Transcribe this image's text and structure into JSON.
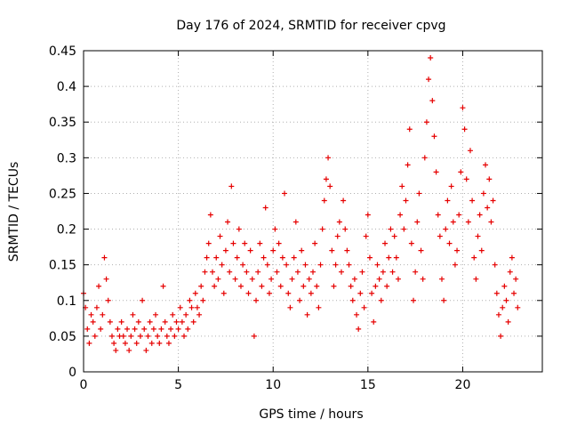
{
  "chart_data": {
    "type": "scatter",
    "title": "Day 176 of 2024, SRMTID for receiver cpvg",
    "xlabel": "GPS time / hours",
    "ylabel": "SRMTID / TECUs",
    "xlim": [
      0,
      24.2
    ],
    "ylim": [
      0,
      0.45
    ],
    "xticks": [
      0,
      5,
      10,
      15,
      20
    ],
    "xtick_labels": [
      "0",
      "5",
      "10",
      "15",
      "20"
    ],
    "yticks": [
      0,
      0.05,
      0.1,
      0.15,
      0.2,
      0.25,
      0.3,
      0.35,
      0.4,
      0.45
    ],
    "ytick_labels": [
      "0",
      "0.05",
      "0.1",
      "0.15",
      "0.2",
      "0.25",
      "0.3",
      "0.35",
      "0.4",
      "0.45"
    ],
    "grid": true,
    "marker": "+",
    "marker_color": "#e60000",
    "series": [
      {
        "name": "SRMTID",
        "points": [
          [
            0.0,
            0.11
          ],
          [
            0.1,
            0.09
          ],
          [
            0.2,
            0.06
          ],
          [
            0.3,
            0.04
          ],
          [
            0.4,
            0.08
          ],
          [
            0.5,
            0.07
          ],
          [
            0.6,
            0.05
          ],
          [
            0.7,
            0.09
          ],
          [
            0.8,
            0.12
          ],
          [
            0.9,
            0.06
          ],
          [
            1.0,
            0.08
          ],
          [
            1.1,
            0.16
          ],
          [
            1.2,
            0.13
          ],
          [
            1.3,
            0.1
          ],
          [
            1.4,
            0.07
          ],
          [
            1.5,
            0.05
          ],
          [
            1.6,
            0.04
          ],
          [
            1.7,
            0.03
          ],
          [
            1.8,
            0.06
          ],
          [
            1.9,
            0.05
          ],
          [
            2.0,
            0.07
          ],
          [
            2.1,
            0.05
          ],
          [
            2.2,
            0.04
          ],
          [
            2.3,
            0.06
          ],
          [
            2.4,
            0.03
          ],
          [
            2.5,
            0.05
          ],
          [
            2.6,
            0.08
          ],
          [
            2.7,
            0.06
          ],
          [
            2.8,
            0.04
          ],
          [
            2.9,
            0.07
          ],
          [
            3.0,
            0.05
          ],
          [
            3.1,
            0.1
          ],
          [
            3.2,
            0.06
          ],
          [
            3.3,
            0.03
          ],
          [
            3.4,
            0.05
          ],
          [
            3.5,
            0.07
          ],
          [
            3.6,
            0.04
          ],
          [
            3.7,
            0.06
          ],
          [
            3.8,
            0.08
          ],
          [
            3.9,
            0.05
          ],
          [
            4.0,
            0.04
          ],
          [
            4.1,
            0.06
          ],
          [
            4.2,
            0.12
          ],
          [
            4.3,
            0.07
          ],
          [
            4.4,
            0.05
          ],
          [
            4.5,
            0.04
          ],
          [
            4.6,
            0.06
          ],
          [
            4.7,
            0.08
          ],
          [
            4.8,
            0.05
          ],
          [
            4.9,
            0.07
          ],
          [
            5.0,
            0.06
          ],
          [
            5.1,
            0.09
          ],
          [
            5.2,
            0.07
          ],
          [
            5.3,
            0.05
          ],
          [
            5.4,
            0.08
          ],
          [
            5.5,
            0.06
          ],
          [
            5.6,
            0.1
          ],
          [
            5.7,
            0.09
          ],
          [
            5.8,
            0.07
          ],
          [
            5.9,
            0.11
          ],
          [
            6.0,
            0.09
          ],
          [
            6.1,
            0.08
          ],
          [
            6.2,
            0.12
          ],
          [
            6.3,
            0.1
          ],
          [
            6.4,
            0.14
          ],
          [
            6.5,
            0.16
          ],
          [
            6.6,
            0.18
          ],
          [
            6.7,
            0.22
          ],
          [
            6.8,
            0.14
          ],
          [
            6.9,
            0.12
          ],
          [
            7.0,
            0.16
          ],
          [
            7.1,
            0.13
          ],
          [
            7.2,
            0.19
          ],
          [
            7.3,
            0.15
          ],
          [
            7.4,
            0.11
          ],
          [
            7.5,
            0.17
          ],
          [
            7.6,
            0.21
          ],
          [
            7.7,
            0.14
          ],
          [
            7.8,
            0.26
          ],
          [
            7.9,
            0.18
          ],
          [
            8.0,
            0.13
          ],
          [
            8.1,
            0.16
          ],
          [
            8.2,
            0.2
          ],
          [
            8.3,
            0.12
          ],
          [
            8.4,
            0.15
          ],
          [
            8.5,
            0.18
          ],
          [
            8.6,
            0.14
          ],
          [
            8.7,
            0.11
          ],
          [
            8.8,
            0.17
          ],
          [
            8.9,
            0.13
          ],
          [
            9.0,
            0.05
          ],
          [
            9.1,
            0.1
          ],
          [
            9.2,
            0.14
          ],
          [
            9.3,
            0.18
          ],
          [
            9.4,
            0.12
          ],
          [
            9.5,
            0.16
          ],
          [
            9.6,
            0.23
          ],
          [
            9.7,
            0.15
          ],
          [
            9.8,
            0.11
          ],
          [
            9.9,
            0.13
          ],
          [
            10.0,
            0.17
          ],
          [
            10.1,
            0.2
          ],
          [
            10.2,
            0.14
          ],
          [
            10.3,
            0.18
          ],
          [
            10.4,
            0.12
          ],
          [
            10.5,
            0.16
          ],
          [
            10.6,
            0.25
          ],
          [
            10.7,
            0.15
          ],
          [
            10.8,
            0.11
          ],
          [
            10.9,
            0.09
          ],
          [
            11.0,
            0.13
          ],
          [
            11.1,
            0.16
          ],
          [
            11.2,
            0.21
          ],
          [
            11.3,
            0.14
          ],
          [
            11.4,
            0.1
          ],
          [
            11.5,
            0.17
          ],
          [
            11.6,
            0.12
          ],
          [
            11.7,
            0.15
          ],
          [
            11.8,
            0.08
          ],
          [
            11.9,
            0.13
          ],
          [
            12.0,
            0.11
          ],
          [
            12.1,
            0.14
          ],
          [
            12.2,
            0.18
          ],
          [
            12.3,
            0.12
          ],
          [
            12.4,
            0.09
          ],
          [
            12.5,
            0.15
          ],
          [
            12.6,
            0.2
          ],
          [
            12.7,
            0.24
          ],
          [
            12.8,
            0.27
          ],
          [
            12.9,
            0.3
          ],
          [
            13.0,
            0.26
          ],
          [
            13.1,
            0.17
          ],
          [
            13.2,
            0.12
          ],
          [
            13.3,
            0.15
          ],
          [
            13.4,
            0.19
          ],
          [
            13.5,
            0.21
          ],
          [
            13.6,
            0.14
          ],
          [
            13.7,
            0.24
          ],
          [
            13.8,
            0.2
          ],
          [
            13.9,
            0.17
          ],
          [
            14.0,
            0.15
          ],
          [
            14.1,
            0.12
          ],
          [
            14.2,
            0.1
          ],
          [
            14.3,
            0.13
          ],
          [
            14.4,
            0.08
          ],
          [
            14.5,
            0.06
          ],
          [
            14.6,
            0.11
          ],
          [
            14.7,
            0.14
          ],
          [
            14.8,
            0.09
          ],
          [
            14.9,
            0.19
          ],
          [
            15.0,
            0.22
          ],
          [
            15.1,
            0.16
          ],
          [
            15.2,
            0.11
          ],
          [
            15.3,
            0.07
          ],
          [
            15.4,
            0.12
          ],
          [
            15.5,
            0.15
          ],
          [
            15.6,
            0.13
          ],
          [
            15.7,
            0.1
          ],
          [
            15.8,
            0.14
          ],
          [
            15.9,
            0.18
          ],
          [
            16.0,
            0.12
          ],
          [
            16.1,
            0.16
          ],
          [
            16.2,
            0.2
          ],
          [
            16.3,
            0.14
          ],
          [
            16.4,
            0.19
          ],
          [
            16.5,
            0.16
          ],
          [
            16.6,
            0.13
          ],
          [
            16.7,
            0.22
          ],
          [
            16.8,
            0.26
          ],
          [
            16.9,
            0.2
          ],
          [
            17.0,
            0.24
          ],
          [
            17.1,
            0.29
          ],
          [
            17.2,
            0.34
          ],
          [
            17.3,
            0.18
          ],
          [
            17.4,
            0.1
          ],
          [
            17.5,
            0.14
          ],
          [
            17.6,
            0.21
          ],
          [
            17.7,
            0.25
          ],
          [
            17.8,
            0.17
          ],
          [
            17.9,
            0.13
          ],
          [
            18.0,
            0.3
          ],
          [
            18.1,
            0.35
          ],
          [
            18.2,
            0.41
          ],
          [
            18.3,
            0.44
          ],
          [
            18.4,
            0.38
          ],
          [
            18.5,
            0.33
          ],
          [
            18.6,
            0.28
          ],
          [
            18.7,
            0.22
          ],
          [
            18.8,
            0.19
          ],
          [
            18.9,
            0.13
          ],
          [
            19.0,
            0.1
          ],
          [
            19.1,
            0.2
          ],
          [
            19.2,
            0.24
          ],
          [
            19.3,
            0.18
          ],
          [
            19.4,
            0.26
          ],
          [
            19.5,
            0.21
          ],
          [
            19.6,
            0.15
          ],
          [
            19.7,
            0.17
          ],
          [
            19.8,
            0.22
          ],
          [
            19.9,
            0.28
          ],
          [
            20.0,
            0.37
          ],
          [
            20.1,
            0.34
          ],
          [
            20.2,
            0.27
          ],
          [
            20.3,
            0.21
          ],
          [
            20.4,
            0.31
          ],
          [
            20.5,
            0.24
          ],
          [
            20.6,
            0.16
          ],
          [
            20.7,
            0.13
          ],
          [
            20.8,
            0.19
          ],
          [
            20.9,
            0.22
          ],
          [
            21.0,
            0.17
          ],
          [
            21.1,
            0.25
          ],
          [
            21.2,
            0.29
          ],
          [
            21.3,
            0.23
          ],
          [
            21.4,
            0.27
          ],
          [
            21.5,
            0.21
          ],
          [
            21.6,
            0.24
          ],
          [
            21.7,
            0.15
          ],
          [
            21.8,
            0.11
          ],
          [
            21.9,
            0.08
          ],
          [
            22.0,
            0.05
          ],
          [
            22.1,
            0.09
          ],
          [
            22.2,
            0.12
          ],
          [
            22.3,
            0.1
          ],
          [
            22.4,
            0.07
          ],
          [
            22.5,
            0.14
          ],
          [
            22.6,
            0.16
          ],
          [
            22.7,
            0.11
          ],
          [
            22.8,
            0.13
          ],
          [
            22.9,
            0.09
          ]
        ]
      }
    ]
  }
}
